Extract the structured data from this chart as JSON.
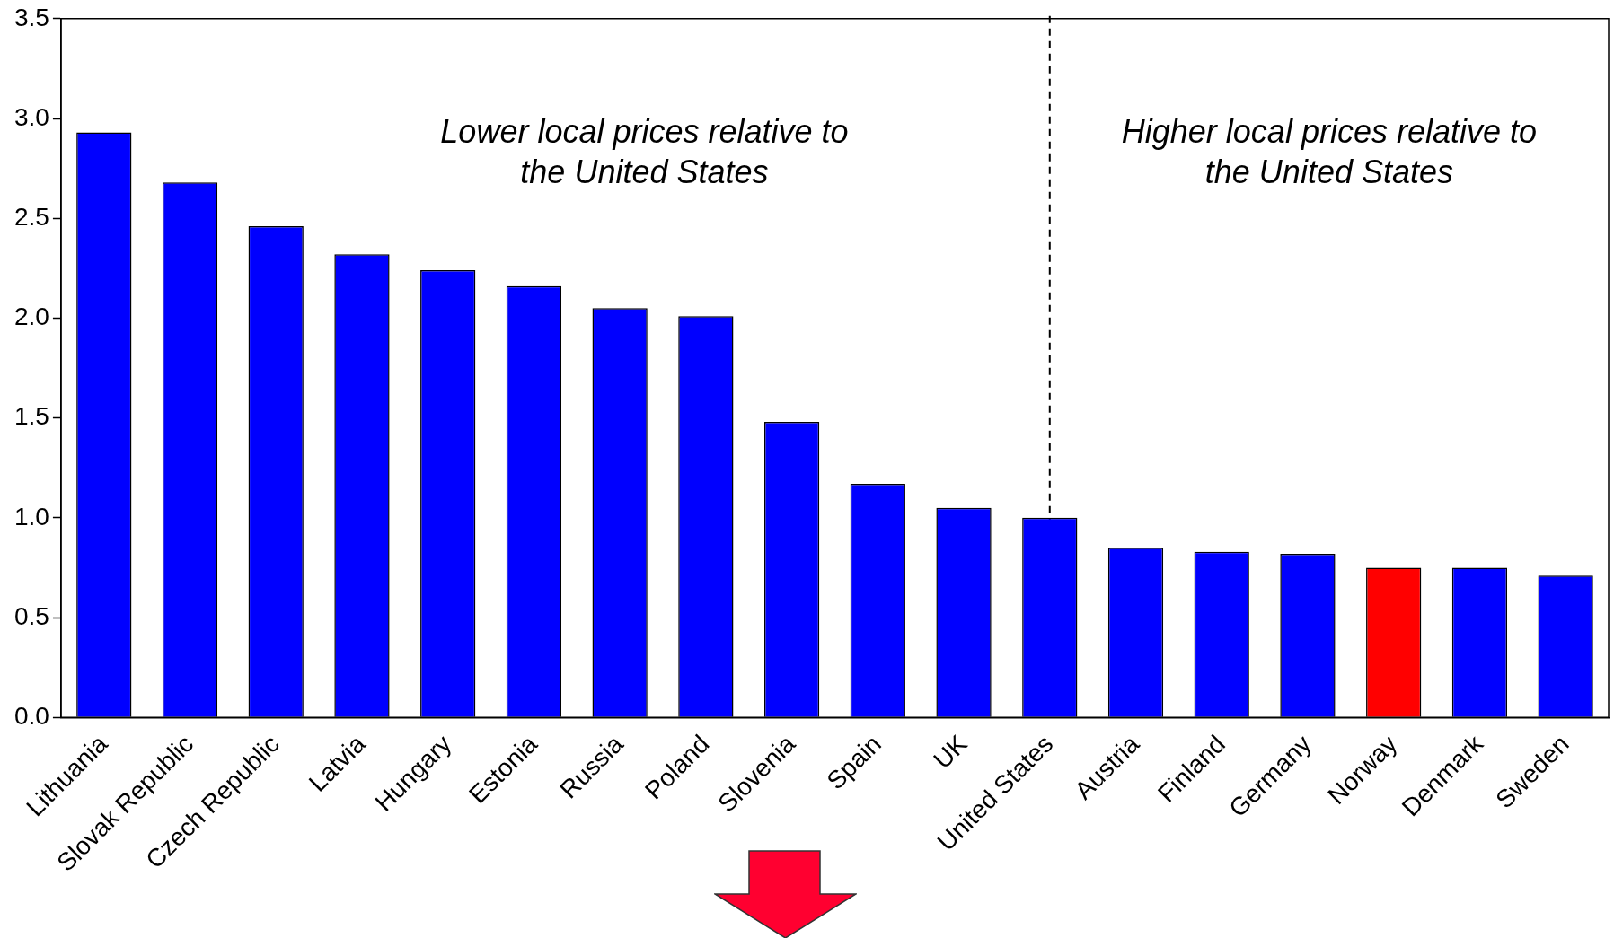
{
  "chart_data": {
    "type": "bar",
    "categories": [
      "Lithuania",
      "Slovak Republic",
      "Czech Republic",
      "Latvia",
      "Hungary",
      "Estonia",
      "Russia",
      "Poland",
      "Slovenia",
      "Spain",
      "UK",
      "United States",
      "Austria",
      "Finland",
      "Germany",
      "Norway",
      "Denmark",
      "Sweden"
    ],
    "values": [
      2.93,
      2.68,
      2.46,
      2.32,
      2.24,
      2.16,
      2.05,
      2.01,
      1.48,
      1.17,
      1.05,
      1.0,
      0.85,
      0.83,
      0.82,
      0.75,
      0.75,
      0.71
    ],
    "colors": [
      "#0000ff",
      "#0000ff",
      "#0000ff",
      "#0000ff",
      "#0000ff",
      "#0000ff",
      "#0000ff",
      "#0000ff",
      "#0000ff",
      "#0000ff",
      "#0000ff",
      "#0000ff",
      "#0000ff",
      "#0000ff",
      "#0000ff",
      "#ff0000",
      "#0000ff",
      "#0000ff"
    ],
    "ylim": [
      0,
      3.5
    ],
    "yticks": [
      {
        "value": 0,
        "label": "0.0"
      },
      0.5,
      {
        "value": 1,
        "label": "1.0"
      },
      1.5,
      {
        "value": 2,
        "label": "2.0"
      },
      2.5,
      {
        "value": 3,
        "label": "3.0"
      },
      3.5
    ],
    "ref_lines": [
      {
        "axis": "x",
        "value": "United States",
        "color": "#000000",
        "line_style": "dashed"
      }
    ],
    "annotations": [
      "Lower local prices relative to the United States",
      "Higher local prices relative to the United States"
    ]
  }
}
